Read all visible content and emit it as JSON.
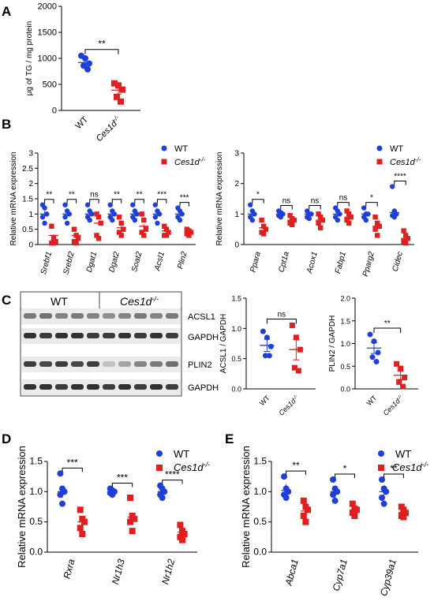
{
  "colors": {
    "wt": "#1f3fd6",
    "ko": "#e02020",
    "axis": "#000000"
  },
  "legend": {
    "wt": "WT",
    "ko_base": "Ces1d",
    "ko_sup": "-/-"
  },
  "panels": {
    "A": "A",
    "B": "B",
    "C": "C",
    "D": "D",
    "E": "E"
  },
  "blot": {
    "group_wt": "WT",
    "group_ko_base": "Ces1d",
    "group_ko_sup": "-/-",
    "rows": [
      "ACSL1",
      "GAPDH",
      "PLIN2",
      "GAPDH"
    ]
  },
  "chart_data": [
    {
      "id": "A",
      "type": "scatter",
      "ylabel": "μg of TG / mg protein",
      "ylim": [
        0,
        2000
      ],
      "yticks": [
        0,
        500,
        1000,
        1500,
        2000
      ],
      "categories": [
        "WT",
        "Ces1d-/-"
      ],
      "series": [
        {
          "name": "WT",
          "mean": 920,
          "sem": 90,
          "points": [
            1050,
            1000,
            900,
            860,
            790
          ]
        },
        {
          "name": "Ces1d-/-",
          "mean": 390,
          "sem": 75,
          "points": [
            520,
            480,
            400,
            260,
            170
          ]
        }
      ],
      "significance": [
        {
          "label": "**"
        }
      ]
    },
    {
      "id": "B1",
      "type": "scatter",
      "ylabel": "Relative mRNA expression",
      "ylim": [
        0,
        3
      ],
      "yticks": [
        0,
        0.5,
        1,
        1.5,
        2,
        2.5,
        3
      ],
      "categories": [
        "Srebf1",
        "Srebf2",
        "Dgat1",
        "Dgat2",
        "Soat2",
        "Acsl1",
        "Plin2"
      ],
      "series": [
        {
          "name": "WT",
          "means": [
            1.0,
            1.0,
            1.0,
            1.0,
            1.0,
            1.0,
            1.0
          ],
          "points": [
            [
              1.3,
              1.2,
              1.0,
              0.9,
              0.7
            ],
            [
              1.3,
              1.1,
              1.0,
              0.9,
              0.7
            ],
            [
              1.3,
              1.1,
              1.0,
              0.9,
              0.8
            ],
            [
              1.3,
              1.1,
              1.0,
              0.9,
              0.8
            ],
            [
              1.3,
              1.1,
              1.0,
              0.9,
              0.8
            ],
            [
              1.3,
              1.1,
              1.0,
              0.9,
              0.7
            ],
            [
              1.2,
              1.1,
              1.0,
              0.9,
              0.8
            ]
          ]
        },
        {
          "name": "Ces1d-/-",
          "means": [
            0.3,
            0.3,
            0.7,
            0.55,
            0.6,
            0.45,
            0.4
          ],
          "points": [
            [
              0.6,
              0.2,
              0.1,
              0.05,
              0.05
            ],
            [
              0.5,
              0.3,
              0.2,
              0.1,
              0.05
            ],
            [
              1.0,
              0.9,
              0.7,
              0.3,
              0.2
            ],
            [
              0.9,
              0.7,
              0.5,
              0.4,
              0.3
            ],
            [
              1.0,
              0.8,
              0.5,
              0.4,
              0.3
            ],
            [
              0.6,
              0.5,
              0.4,
              0.3,
              0.3
            ],
            [
              0.5,
              0.45,
              0.4,
              0.35,
              0.3
            ]
          ]
        }
      ],
      "significance": [
        "**",
        "**",
        "ns",
        "**",
        "**",
        "***",
        "***"
      ]
    },
    {
      "id": "B2",
      "type": "scatter",
      "ylabel": "Relative mRNA expression",
      "ylim": [
        0,
        3
      ],
      "yticks": [
        0,
        1,
        2,
        3
      ],
      "categories": [
        "Ppara",
        "Cpt1a",
        "Acox1",
        "Fabp1",
        "Pparg2",
        "Cidec"
      ],
      "series": [
        {
          "name": "WT",
          "means": [
            1.0,
            1.0,
            1.0,
            1.0,
            1.0,
            1.05
          ],
          "points": [
            [
              1.3,
              1.1,
              1.0,
              0.9,
              0.8
            ],
            [
              1.1,
              1.05,
              1.0,
              0.95,
              0.9
            ],
            [
              1.1,
              1.0,
              1.0,
              0.9,
              0.85
            ],
            [
              1.2,
              1.1,
              1.0,
              0.9,
              0.8
            ],
            [
              1.2,
              1.0,
              1.0,
              0.9,
              0.8
            ],
            [
              1.9,
              1.1,
              1.0,
              0.95,
              0.9
            ]
          ]
        },
        {
          "name": "Ces1d-/-",
          "means": [
            0.55,
            0.8,
            0.8,
            0.9,
            0.6,
            0.2
          ],
          "points": [
            [
              0.8,
              0.6,
              0.5,
              0.4,
              0.35
            ],
            [
              0.95,
              0.85,
              0.8,
              0.7,
              0.65
            ],
            [
              1.0,
              0.9,
              0.8,
              0.7,
              0.55
            ],
            [
              1.1,
              1.0,
              0.9,
              0.8,
              0.7
            ],
            [
              0.9,
              0.7,
              0.6,
              0.5,
              0.3
            ],
            [
              0.45,
              0.3,
              0.2,
              0.1,
              0.05
            ]
          ]
        }
      ],
      "significance": [
        "*",
        "ns",
        "ns",
        "ns",
        "*",
        "****"
      ]
    },
    {
      "id": "C1",
      "type": "scatter",
      "ylabel": "ACSL1 / GAPDH",
      "ylim": [
        0,
        1.5
      ],
      "yticks": [
        0,
        0.5,
        1.0,
        1.5
      ],
      "categories": [
        "WT",
        "Ces1d-/-"
      ],
      "series": [
        {
          "name": "WT",
          "mean": 0.72,
          "sem": 0.1,
          "points": [
            0.95,
            0.85,
            0.7,
            0.55,
            0.55
          ]
        },
        {
          "name": "Ces1d-/-",
          "mean": 0.65,
          "sem": 0.17,
          "points": [
            1.05,
            0.85,
            0.65,
            0.35,
            0.3
          ]
        }
      ],
      "significance": [
        {
          "label": "ns"
        }
      ]
    },
    {
      "id": "C2",
      "type": "scatter",
      "ylabel": "PLIN2 / GAPDH",
      "ylim": [
        0,
        2.0
      ],
      "yticks": [
        0,
        0.5,
        1.0,
        1.5,
        2.0
      ],
      "categories": [
        "WT",
        "Ces1d-/-"
      ],
      "series": [
        {
          "name": "WT",
          "mean": 0.9,
          "sem": 0.12,
          "points": [
            1.2,
            1.05,
            0.8,
            0.7,
            0.6
          ]
        },
        {
          "name": "Ces1d-/-",
          "mean": 0.3,
          "sem": 0.09,
          "points": [
            0.55,
            0.45,
            0.25,
            0.15,
            0.05
          ]
        }
      ],
      "significance": [
        {
          "label": "**"
        }
      ]
    },
    {
      "id": "D",
      "type": "scatter",
      "ylabel": "Relative mRNA expression",
      "ylim": [
        0,
        1.5
      ],
      "yticks": [
        0.0,
        0.5,
        1.0,
        1.5
      ],
      "categories": [
        "Rxra",
        "Nr1h3",
        "Nr1h2"
      ],
      "series": [
        {
          "name": "WT",
          "means": [
            1.0,
            1.0,
            1.0
          ],
          "points": [
            [
              1.3,
              1.05,
              1.0,
              0.95,
              0.8
            ],
            [
              1.05,
              1.02,
              1.0,
              0.98,
              0.95
            ],
            [
              1.1,
              1.05,
              1.0,
              0.95,
              0.9
            ]
          ]
        },
        {
          "name": "Ces1d-/-",
          "means": [
            0.5,
            0.58,
            0.33
          ],
          "points": [
            [
              0.7,
              0.55,
              0.5,
              0.4,
              0.3
            ],
            [
              0.9,
              0.6,
              0.55,
              0.5,
              0.35
            ],
            [
              0.45,
              0.35,
              0.3,
              0.25,
              0.2
            ]
          ]
        }
      ],
      "significance": [
        "***",
        "***",
        "****"
      ]
    },
    {
      "id": "E",
      "type": "scatter",
      "ylabel": "Relative mRNA expression",
      "ylim": [
        0,
        1.5
      ],
      "yticks": [
        0.0,
        0.5,
        1.0,
        1.5
      ],
      "categories": [
        "Abca1",
        "Cyp7a1",
        "Cyp39a1"
      ],
      "series": [
        {
          "name": "WT",
          "means": [
            1.02,
            1.0,
            1.0
          ],
          "points": [
            [
              1.25,
              1.05,
              1.0,
              0.95,
              0.9
            ],
            [
              1.2,
              1.05,
              1.0,
              0.95,
              0.85
            ],
            [
              1.2,
              1.05,
              1.0,
              0.9,
              0.8
            ]
          ]
        },
        {
          "name": "Ces1d-/-",
          "means": [
            0.68,
            0.7,
            0.66
          ],
          "points": [
            [
              0.85,
              0.75,
              0.7,
              0.6,
              0.5
            ],
            [
              0.8,
              0.72,
              0.7,
              0.65,
              0.6
            ],
            [
              0.75,
              0.7,
              0.65,
              0.6,
              0.58
            ]
          ]
        }
      ],
      "significance": [
        "**",
        "*",
        "**"
      ]
    }
  ]
}
